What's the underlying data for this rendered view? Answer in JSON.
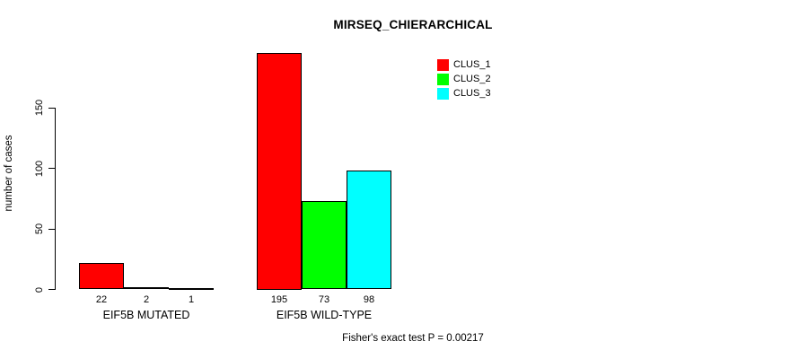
{
  "chart_data": {
    "type": "bar",
    "title": "MIRSEQ_CHIERARCHICAL",
    "ylabel": "number of cases",
    "xlabel": "",
    "yticks": [
      0,
      50,
      100,
      150
    ],
    "ylim": [
      0,
      195
    ],
    "grid": false,
    "legend_position": "top-right",
    "categories": [
      "EIF5B MUTATED",
      "EIF5B WILD-TYPE"
    ],
    "series": [
      {
        "name": "CLUS_1",
        "color": "#ff0000",
        "values": [
          22,
          195
        ]
      },
      {
        "name": "CLUS_2",
        "color": "#00ff00",
        "values": [
          2,
          73
        ]
      },
      {
        "name": "CLUS_3",
        "color": "#00ffff",
        "values": [
          1,
          98
        ]
      }
    ],
    "bar_value_labels": [
      [
        22,
        2,
        1
      ],
      [
        195,
        73,
        98
      ]
    ],
    "annotation": "Fisher's exact test P = 0.00217"
  }
}
